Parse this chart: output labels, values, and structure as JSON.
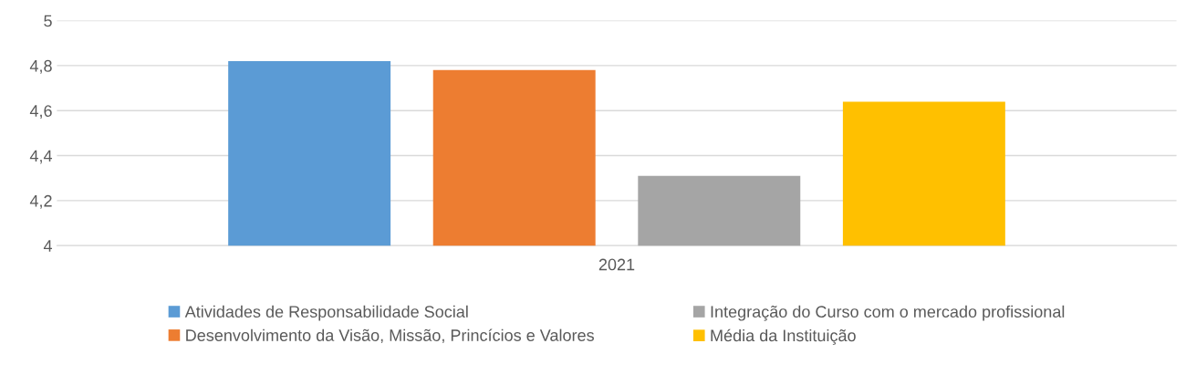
{
  "chart_data": {
    "type": "bar",
    "categories": [
      "2021"
    ],
    "series": [
      {
        "name": "Atividades de Responsabilidade Social",
        "color": "#5b9bd5",
        "values": [
          4.82
        ]
      },
      {
        "name": "Desenvolvimento da Visão, Missão, Princícios e Valores",
        "color": "#ed7d31",
        "values": [
          4.78
        ]
      },
      {
        "name": "Integração do Curso com o mercado profissional",
        "color": "#a5a5a5",
        "values": [
          4.31
        ]
      },
      {
        "name": "Média da Instituição",
        "color": "#ffc000",
        "values": [
          4.64
        ]
      }
    ],
    "ylim": [
      4,
      5
    ],
    "yticks": [
      4,
      {
        "value": 4.2,
        "label": "4,2"
      },
      {
        "value": 4.4,
        "label": "4,4"
      },
      {
        "value": 4.6,
        "label": "4,6"
      },
      {
        "value": 4.8,
        "label": "4,8"
      },
      5
    ],
    "grid": "y",
    "legend": "bottom"
  }
}
